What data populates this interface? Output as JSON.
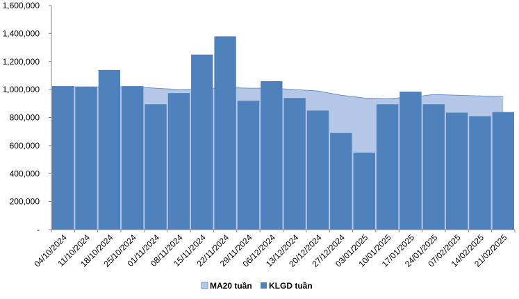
{
  "chart_data": {
    "type": "bar",
    "categories": [
      "04/10/2024",
      "11/10/2024",
      "18/10/2024",
      "25/10/2024",
      "01/11/2024",
      "08/11/2024",
      "15/11/2024",
      "22/11/2024",
      "29/11/2024",
      "06/12/2024",
      "13/12/2024",
      "20/12/2024",
      "27/12/2024",
      "03/01/2025",
      "10/01/2025",
      "17/01/2025",
      "24/01/2025",
      "07/02/2025",
      "14/02/2025",
      "21/02/2025"
    ],
    "series": [
      {
        "name": "MA20 tuần",
        "render": "area",
        "color": "#b4c7e7",
        "line_color": "#6a93c9",
        "values": [
          1020000,
          1020000,
          1020000,
          1020000,
          1010000,
          1000000,
          1005000,
          1015000,
          1010000,
          1010000,
          1000000,
          990000,
          960000,
          940000,
          935000,
          945000,
          965000,
          960000,
          955000,
          950000
        ]
      },
      {
        "name": "KLGD tuần",
        "render": "bar",
        "color": "#4f81bd",
        "values": [
          1025000,
          1020000,
          1140000,
          1025000,
          895000,
          975000,
          1250000,
          1380000,
          920000,
          1060000,
          940000,
          850000,
          690000,
          550000,
          895000,
          985000,
          895000,
          835000,
          810000,
          840000
        ]
      }
    ],
    "yticks": [
      "-",
      "200,000",
      "400,000",
      "600,000",
      "800,000",
      "1,000,000",
      "1,200,000",
      "1,400,000",
      "1,600,000"
    ],
    "ylim": [
      0,
      1600000
    ],
    "legend": "bottom-center",
    "grid": false
  }
}
